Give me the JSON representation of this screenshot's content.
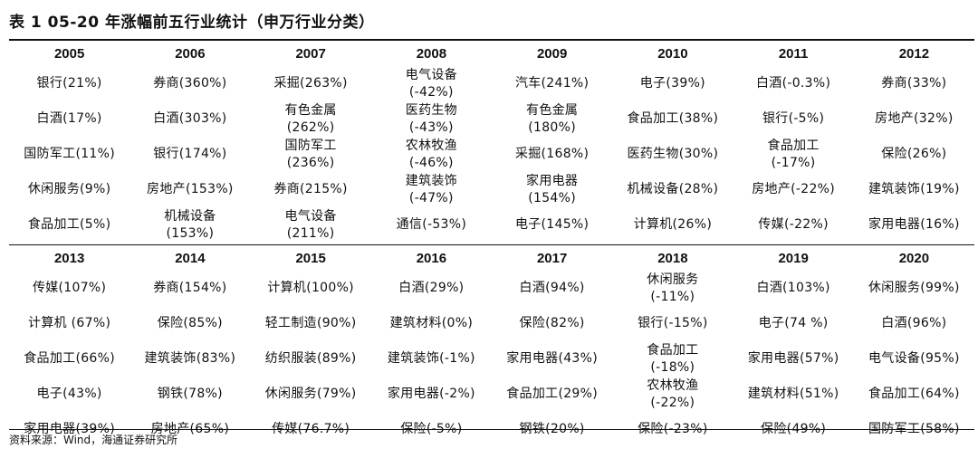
{
  "title": "表 1 05-20 年涨幅前五行业统计（申万行业分类）",
  "source": "资料来源：Wind，海通证券研究所",
  "blocks": [
    {
      "years": [
        "2005",
        "2006",
        "2007",
        "2008",
        "2009",
        "2010",
        "2011",
        "2012"
      ],
      "rows": [
        [
          "银行(21%)",
          "券商(360%)",
          "采掘(263%)",
          "电气设备\n(-42%)",
          "汽车(241%)",
          "电子(39%)",
          "白酒(-0.3%)",
          "券商(33%)"
        ],
        [
          "白酒(17%)",
          "白酒(303%)",
          "有色金属\n(262%)",
          "医药生物\n(-43%)",
          "有色金属\n(180%)",
          "食品加工(38%)",
          "银行(-5%)",
          "房地产(32%)"
        ],
        [
          "国防军工(11%)",
          "银行(174%)",
          "国防军工\n(236%)",
          "农林牧渔\n(-46%)",
          "采掘(168%)",
          "医药生物(30%)",
          "食品加工\n(-17%)",
          "保险(26%)"
        ],
        [
          "休闲服务(9%)",
          "房地产(153%)",
          "券商(215%)",
          "建筑装饰\n(-47%)",
          "家用电器\n(154%)",
          "机械设备(28%)",
          "房地产(-22%)",
          "建筑装饰(19%)"
        ],
        [
          "食品加工(5%)",
          "机械设备\n(153%)",
          "电气设备\n(211%)",
          "通信(-53%)",
          "电子(145%)",
          "计算机(26%)",
          "传媒(-22%)",
          "家用电器(16%)"
        ]
      ]
    },
    {
      "years": [
        "2013",
        "2014",
        "2015",
        "2016",
        "2017",
        "2018",
        "2019",
        "2020"
      ],
      "rows": [
        [
          "传媒(107%)",
          "券商(154%)",
          "计算机(100%)",
          "白酒(29%)",
          "白酒(94%)",
          "休闲服务\n(-11%)",
          "白酒(103%)",
          "休闲服务(99%)"
        ],
        [
          "计算机 (67%)",
          "保险(85%)",
          "轻工制造(90%)",
          "建筑材料(0%)",
          "保险(82%)",
          "银行(-15%)",
          "电子(74 %)",
          "白酒(96%)"
        ],
        [
          "食品加工(66%)",
          "建筑装饰(83%)",
          "纺织服装(89%)",
          "建筑装饰(-1%)",
          "家用电器(43%)",
          "食品加工\n(-18%)",
          "家用电器(57%)",
          "电气设备(95%)"
        ],
        [
          "电子(43%)",
          "钢铁(78%)",
          "休闲服务(79%)",
          "家用电器(-2%)",
          "食品加工(29%)",
          "农林牧渔\n(-22%)",
          "建筑材料(51%)",
          "食品加工(64%)"
        ],
        [
          "家用电器(39%)",
          "房地产(65%)",
          "传媒(76.7%)",
          "保险(-5%)",
          "钢铁(20%)",
          "保险(-23%)",
          "保险(49%)",
          "国防军工(58%)"
        ]
      ]
    }
  ]
}
